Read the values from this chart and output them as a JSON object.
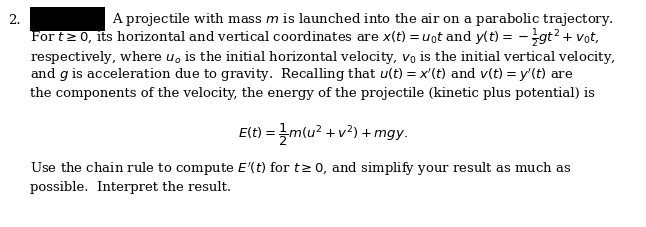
{
  "number": "2.",
  "black_box_color": "#000000",
  "background_color": "#ffffff",
  "text_color": "#000000",
  "figsize": [
    6.46,
    2.28
  ],
  "dpi": 100,
  "line1_box": "A projectile with mass $m$ is launched into the air on a parabolic trajectory.",
  "line2": "For $t \\geq 0$, its horizontal and vertical coordinates are $x(t) = u_0t$ and $y(t) = -\\frac{1}{2}gt^2 + v_0t$,",
  "line3": "respectively, where $u_o$ is the initial horizontal velocity, $v_0$ is the initial vertical velocity,",
  "line4": "and $g$ is acceleration due to gravity.  Recalling that $u(t) = x'(t)$ and $v(t) = y'(t)$ are",
  "line5": "the components of the velocity, the energy of the projectile (kinetic plus potential) is",
  "equation": "$E(t) = \\dfrac{1}{2}m(u^2 + v^2) + mgy.$",
  "line7": "Use the chain rule to compute $E'(t)$ for $t \\geq 0$, and simplify your result as much as",
  "line8": "possible.  Interpret the result.",
  "font_size": 9.5
}
